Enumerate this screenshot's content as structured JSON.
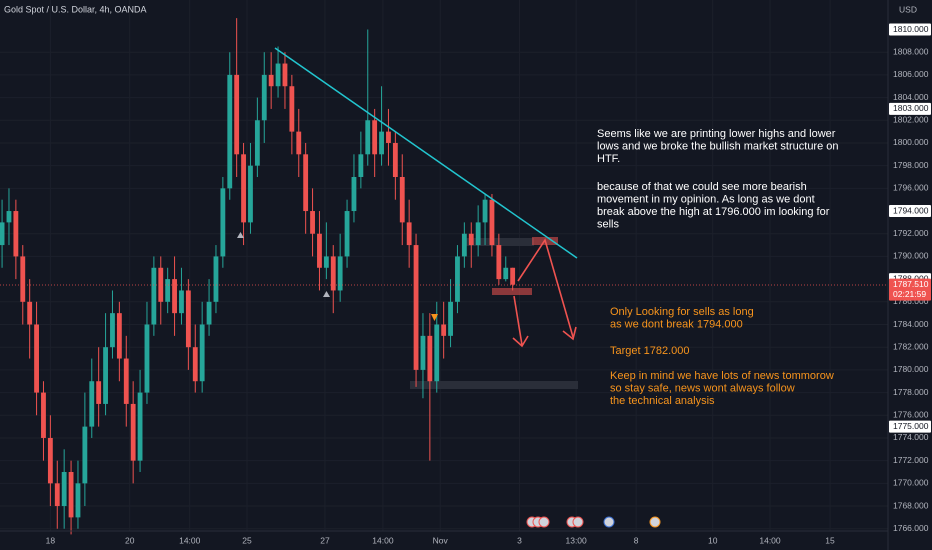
{
  "chart_data": {
    "type": "candlestick",
    "title": "Gold Spot / U.S. Dollar, 4h, OANDA",
    "unit": "USD",
    "up_color": "#26a69a",
    "down_color": "#ef5350",
    "x": [
      0,
      1,
      2,
      3,
      4,
      5,
      6,
      7,
      8,
      9,
      10,
      11,
      12,
      13,
      14,
      15,
      16,
      17,
      18,
      19,
      20,
      21,
      22,
      23,
      24,
      25,
      26,
      27,
      28,
      29,
      30,
      31,
      32,
      33,
      34,
      35,
      36,
      37,
      38,
      39,
      40,
      41,
      42,
      43,
      44,
      45,
      46,
      47,
      48,
      49,
      50,
      51,
      52,
      53,
      54,
      55,
      56,
      57,
      58,
      59,
      60,
      61,
      62,
      63,
      64,
      65,
      66,
      67,
      68,
      69,
      70,
      71,
      72,
      73,
      74
    ],
    "open": [
      1791,
      1793,
      1794,
      1790,
      1786,
      1784,
      1778,
      1774,
      1770,
      1768,
      1771,
      1767,
      1770,
      1775,
      1779,
      1777,
      1782,
      1785,
      1781,
      1777,
      1772,
      1778,
      1784,
      1789,
      1786,
      1788,
      1785,
      1787,
      1782,
      1779,
      1784,
      1786,
      1790,
      1796,
      1806,
      1799,
      1793,
      1798,
      1802,
      1806,
      1805,
      1807,
      1805,
      1801,
      1799,
      1794,
      1792,
      1789,
      1790,
      1787,
      1790,
      1794,
      1797,
      1799,
      1802,
      1799,
      1801,
      1800,
      1797,
      1793,
      1791,
      1780,
      1783,
      1779,
      1784,
      1783,
      1786,
      1790,
      1792,
      1791,
      1793,
      1795,
      1791,
      1788,
      1789
    ],
    "high": [
      1795,
      1796,
      1795,
      1791,
      1788,
      1786,
      1779,
      1776,
      1772,
      1773,
      1772,
      1772,
      1778,
      1781,
      1782,
      1785,
      1787,
      1786,
      1783,
      1779,
      1780,
      1786,
      1790,
      1790,
      1789,
      1790,
      1789,
      1788,
      1784,
      1786,
      1788,
      1791,
      1797,
      1808,
      1811,
      1800,
      1800,
      1804,
      1808,
      1808,
      1808.5,
      1808,
      1806,
      1803,
      1800,
      1796,
      1794,
      1793,
      1791,
      1792,
      1795,
      1799,
      1801,
      1810,
      1803,
      1805,
      1803,
      1801,
      1799,
      1795,
      1792,
      1785,
      1785,
      1786,
      1786,
      1788,
      1791,
      1793,
      1793,
      1794.5,
      1795.5,
      1795.5,
      1792,
      1790,
      1789
    ],
    "low": [
      1789,
      1791,
      1788,
      1784,
      1781,
      1776,
      1772,
      1768,
      1766,
      1766,
      1765.5,
      1766,
      1768,
      1774,
      1775,
      1776,
      1781,
      1779,
      1775,
      1770,
      1771,
      1777,
      1783,
      1784,
      1785,
      1783,
      1784,
      1780,
      1778,
      1778,
      1783,
      1785,
      1789,
      1795,
      1797,
      1791,
      1792,
      1797,
      1800,
      1803,
      1804,
      1803,
      1799,
      1797,
      1792,
      1790,
      1787,
      1788,
      1785,
      1786,
      1789,
      1793,
      1796,
      1798,
      1797,
      1798,
      1798,
      1795,
      1791,
      1789,
      1778.5,
      1777.5,
      1772,
      1778,
      1781,
      1782,
      1785,
      1789,
      1789,
      1790,
      1791,
      1790,
      1787.5,
      1787.8,
      1787
    ],
    "close": [
      1793,
      1794,
      1790,
      1786,
      1784,
      1778,
      1774,
      1770,
      1768,
      1771,
      1767,
      1770,
      1775,
      1779,
      1777,
      1782,
      1785,
      1781,
      1777,
      1772,
      1778,
      1784,
      1789,
      1786,
      1788,
      1785,
      1787,
      1782,
      1779,
      1784,
      1786,
      1790,
      1796,
      1806,
      1799,
      1793,
      1798,
      1802,
      1806,
      1805,
      1807,
      1805,
      1801,
      1799,
      1794,
      1792,
      1789,
      1790,
      1787,
      1790,
      1794,
      1797,
      1799,
      1802,
      1799,
      1801,
      1800,
      1797,
      1793,
      1791,
      1780,
      1783,
      1779,
      1784,
      1783,
      1786,
      1790,
      1792,
      1791,
      1793,
      1795,
      1791,
      1788,
      1789,
      1787.51
    ],
    "last_price_label": "1787.510",
    "countdown": "02:21:59",
    "xlim": [
      -0.3,
      128.4
    ],
    "xticks": [
      {
        "value": 7,
        "label": "18"
      },
      {
        "value": 18.5,
        "label": "20"
      },
      {
        "value": 27.2,
        "label": "14:00"
      },
      {
        "value": 35.5,
        "label": "25"
      },
      {
        "value": 46.8,
        "label": "27"
      },
      {
        "value": 55.2,
        "label": "14:00"
      },
      {
        "value": 63.5,
        "label": "Nov"
      },
      {
        "value": 75,
        "label": "3"
      },
      {
        "value": 83.2,
        "label": "13:00"
      },
      {
        "value": 91.9,
        "label": "8"
      },
      {
        "value": 103,
        "label": "10"
      },
      {
        "value": 111.3,
        "label": "14:00"
      },
      {
        "value": 120,
        "label": "15"
      }
    ],
    "ylim": [
      1765.8,
      1812.6
    ],
    "yticks": [
      {
        "value": 1766,
        "label": "1766.000"
      },
      {
        "value": 1768,
        "label": "1768.000"
      },
      {
        "value": 1770,
        "label": "1770.000"
      },
      {
        "value": 1772,
        "label": "1772.000"
      },
      {
        "value": 1774,
        "label": "1774.000"
      },
      {
        "value": 1776,
        "label": "1776.000"
      },
      {
        "value": 1778,
        "label": "1778.000"
      },
      {
        "value": 1780,
        "label": "1780.000"
      },
      {
        "value": 1782,
        "label": "1782.000"
      },
      {
        "value": 1784,
        "label": "1784.000"
      },
      {
        "value": 1786,
        "label": "1786.000"
      },
      {
        "value": 1790,
        "label": "1790.000"
      },
      {
        "value": 1792,
        "label": "1792.000"
      },
      {
        "value": 1796,
        "label": "1796.000"
      },
      {
        "value": 1798,
        "label": "1798.000"
      },
      {
        "value": 1800,
        "label": "1800.000"
      },
      {
        "value": 1802,
        "label": "1802.000"
      },
      {
        "value": 1804,
        "label": "1804.000"
      },
      {
        "value": 1806,
        "label": "1806.000"
      },
      {
        "value": 1808,
        "label": "1808.000"
      }
    ],
    "price_labels": [
      {
        "value": 1810,
        "label": "1810.000"
      },
      {
        "value": 1803,
        "label": "1803.000"
      },
      {
        "value": 1794,
        "label": "1794.000"
      },
      {
        "value": 1788,
        "label": "1788.000"
      },
      {
        "value": 1775,
        "label": "1775.000"
      }
    ],
    "annotations": {
      "analysis_1": [
        "Seems like we are printing lower highs and lower",
        "lows and we broke the bullish market structure on",
        "HTF."
      ],
      "analysis_2": [
        "because of that we could see more bearish",
        "movement in my opinion. As long as we dont",
        "break above the high at 1796.000 im looking for",
        "sells"
      ],
      "plan": [
        "Only Looking for sells as long",
        "as we dont break 1794.000"
      ],
      "target": [
        "Target 1782.000"
      ],
      "warning": [
        "Keep in mind we have lots of news tommorow",
        "so stay safe, news wont always follow",
        "the technical analysis"
      ]
    }
  }
}
